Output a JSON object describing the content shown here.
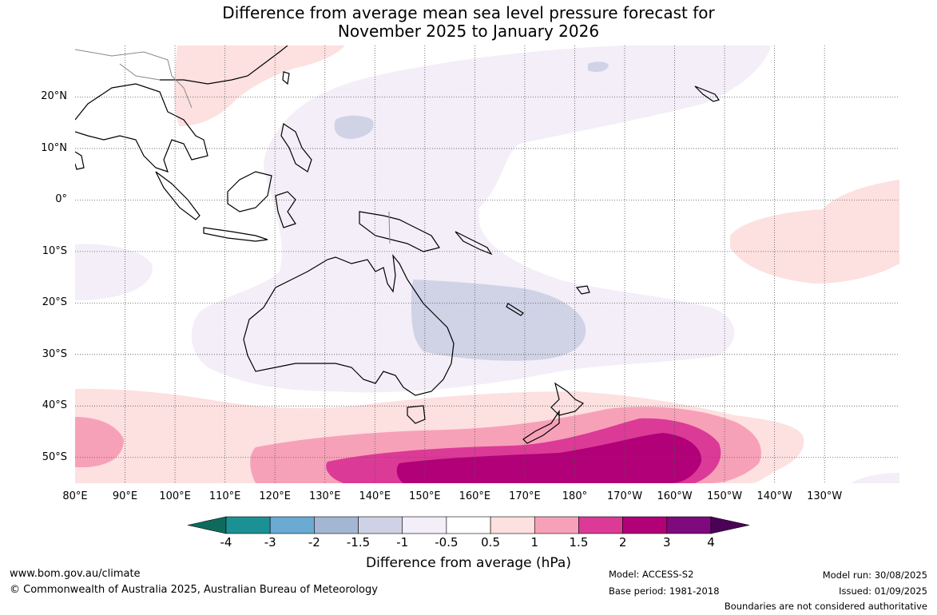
{
  "title": {
    "line1": "Difference from average mean sea level pressure forecast for",
    "line2": "November 2025 to January 2026"
  },
  "map": {
    "lon_range_east": [
      80,
      245
    ],
    "lat_range": [
      -55,
      30
    ],
    "lat_labels": [
      "20°N",
      "10°N",
      "0°",
      "10°S",
      "20°S",
      "30°S",
      "40°S",
      "50°S"
    ],
    "lon_labels": [
      "80°E",
      "90°E",
      "100°E",
      "110°E",
      "120°E",
      "130°E",
      "140°E",
      "150°E",
      "160°E",
      "170°E",
      "180°",
      "170°W",
      "160°W",
      "150°W",
      "140°W",
      "130°W"
    ],
    "gridlines": "dotted",
    "ocean_color": "#ffffff",
    "coast_color": "#000000"
  },
  "colorbar": {
    "ticks": [
      "-4",
      "-3",
      "-2",
      "-1.5",
      "-1",
      "-0.5",
      "0.5",
      "1",
      "1.5",
      "2",
      "3",
      "4"
    ],
    "colors": [
      "#0e6b5c",
      "#1b9195",
      "#6aaad3",
      "#a3b7d4",
      "#cfd1e6",
      "#f3eef7",
      "#ffffff",
      "#fde0e0",
      "#f7a1b8",
      "#dc3a97",
      "#b10078",
      "#7f0a7d",
      "#4b0158"
    ],
    "label": "Difference from average (hPa)"
  },
  "footer": {
    "website": "www.bom.gov.au/climate",
    "copyright": "© Commonwealth of Australia 2025, Australian Bureau of Meteorology",
    "model": "Model: ACCESS-S2",
    "base_period": "Base period: 1981-2018",
    "model_run": "Model run: 30/08/2025",
    "issued": "Issued: 01/09/2025",
    "disclaimer": "Boundaries are not considered authoritative"
  }
}
